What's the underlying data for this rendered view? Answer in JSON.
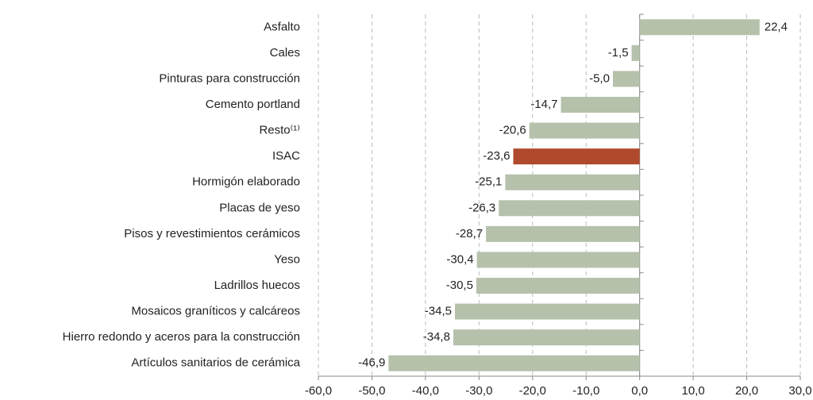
{
  "chart_data": {
    "type": "bar",
    "orientation": "horizontal",
    "categories": [
      "Asfalto",
      "Cales",
      "Pinturas para construcción",
      "Cemento portland",
      "Resto⁽¹⁾",
      "ISAC",
      "Hormigón elaborado",
      "Placas de yeso",
      "Pisos y revestimientos cerámicos",
      "Yeso",
      "Ladrillos huecos",
      "Mosaicos graníticos y calcáreos",
      "Hierro redondo y aceros para la construcción",
      "Artículos sanitarios de cerámica"
    ],
    "values": [
      22.4,
      -1.5,
      -5.0,
      -14.7,
      -20.6,
      -23.6,
      -25.1,
      -26.3,
      -28.7,
      -30.4,
      -30.5,
      -34.5,
      -34.8,
      -46.9
    ],
    "value_labels": [
      "22,4",
      "-1,5",
      "-5,0",
      "-14,7",
      "-20,6",
      "-23,6",
      "-25,1",
      "-26,3",
      "-28,7",
      "-30,4",
      "-30,5",
      "-34,5",
      "-34,8",
      "-46,9"
    ],
    "colors": [
      "#b5c1ab",
      "#b5c1ab",
      "#b5c1ab",
      "#b5c1ab",
      "#b5c1ab",
      "#b04a2e",
      "#b5c1ab",
      "#b5c1ab",
      "#b5c1ab",
      "#b5c1ab",
      "#b5c1ab",
      "#b5c1ab",
      "#b5c1ab",
      "#b5c1ab"
    ],
    "xlim": [
      -60,
      30
    ],
    "xticks": [
      {
        "value": -60,
        "label": "-60,0"
      },
      {
        "value": -50,
        "label": "-50,0"
      },
      {
        "value": -40,
        "label": "-40,0"
      },
      {
        "value": -30,
        "label": "-30,0"
      },
      {
        "value": -20,
        "label": "-20,0"
      },
      {
        "value": -10,
        "label": "-10,0"
      },
      {
        "value": 0,
        "label": "0,0"
      },
      {
        "value": 10,
        "label": "10,0"
      },
      {
        "value": 20,
        "label": "20,0"
      },
      {
        "value": 30,
        "label": "30,0"
      }
    ],
    "grid": true
  }
}
